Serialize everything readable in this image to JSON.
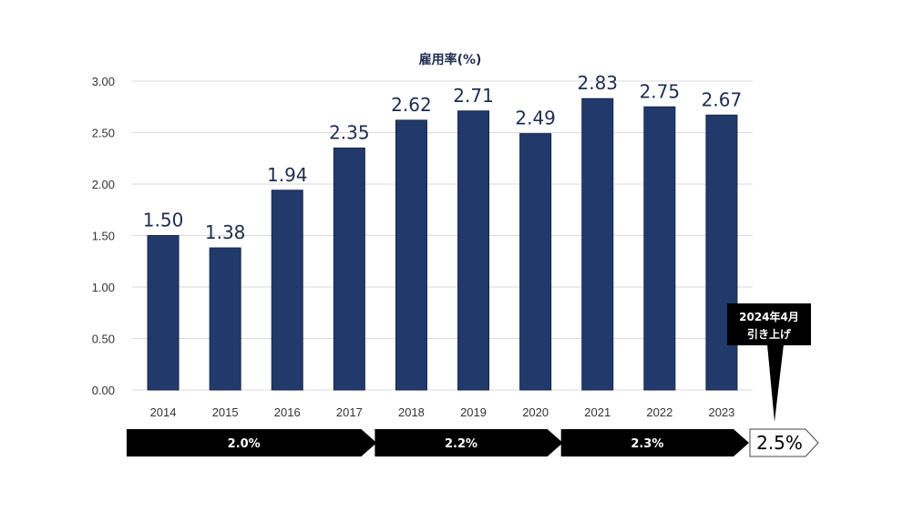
{
  "chart_data": {
    "type": "bar",
    "title": "雇用率(%)",
    "categories": [
      "2014",
      "2015",
      "2016",
      "2017",
      "2018",
      "2019",
      "2020",
      "2021",
      "2022",
      "2023"
    ],
    "values": [
      1.5,
      1.38,
      1.94,
      2.35,
      2.62,
      2.71,
      2.49,
      2.83,
      2.75,
      2.67
    ],
    "value_labels": [
      "1.50",
      "1.38",
      "1.94",
      "2.35",
      "2.62",
      "2.71",
      "2.49",
      "2.83",
      "2.75",
      "2.67"
    ],
    "y_ticks": [
      "0.00",
      "0.50",
      "1.00",
      "1.50",
      "2.00",
      "2.50",
      "3.00"
    ],
    "ylim": [
      0,
      3.0
    ],
    "grid": true,
    "bar_color": "#22396b"
  },
  "rate_periods": [
    {
      "label": "2.0%",
      "from": "2014",
      "to": "2017"
    },
    {
      "label": "2.2%",
      "from": "2018",
      "to": "2020"
    },
    {
      "label": "2.3%",
      "from": "2021",
      "to": "2023"
    }
  ],
  "future_rate": "2.5%",
  "callout": {
    "line1": "2024年4月",
    "line2": "引き上げ"
  }
}
